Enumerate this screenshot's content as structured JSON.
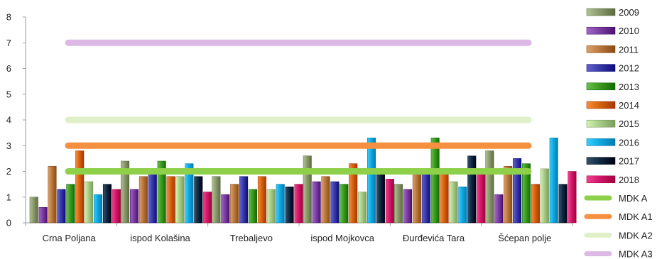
{
  "chart_data": {
    "type": "bar",
    "title": "",
    "xlabel": "",
    "ylabel": "",
    "ylim": [
      0,
      8
    ],
    "yticks": [
      "0",
      "1",
      "2",
      "3",
      "4",
      "5",
      "6",
      "7",
      "8"
    ],
    "grid": false,
    "legend_position": "right",
    "categories": [
      "Crna Poljana",
      "ispod Kolašina",
      "Trebaljevo",
      "ispod Mojkovca",
      "Đurđevića Tara",
      "Šćepan polje"
    ],
    "series": [
      {
        "name": "2009",
        "color": "#8a9a6c",
        "values": [
          1.0,
          2.4,
          1.8,
          2.6,
          1.5,
          2.8
        ]
      },
      {
        "name": "2010",
        "color": "#7a3fa0",
        "values": [
          0.6,
          1.3,
          1.1,
          1.6,
          1.3,
          1.1
        ]
      },
      {
        "name": "2011",
        "color": "#b87840",
        "values": [
          2.2,
          1.8,
          1.5,
          1.8,
          1.9,
          2.2
        ]
      },
      {
        "name": "2012",
        "color": "#3a3aa8",
        "values": [
          1.3,
          2.0,
          1.8,
          1.6,
          2.0,
          2.5
        ]
      },
      {
        "name": "2013",
        "color": "#3f9a22",
        "values": [
          1.5,
          2.4,
          1.3,
          1.5,
          3.3,
          2.3
        ]
      },
      {
        "name": "2014",
        "color": "#d46410",
        "values": [
          2.8,
          1.8,
          1.8,
          2.3,
          2.0,
          1.5
        ]
      },
      {
        "name": "2015",
        "color": "#a8cc88",
        "values": [
          1.6,
          1.8,
          1.3,
          1.2,
          1.6,
          2.1
        ]
      },
      {
        "name": "2016",
        "color": "#10a8e0",
        "values": [
          1.1,
          2.3,
          1.5,
          3.3,
          1.4,
          3.3
        ]
      },
      {
        "name": "2017",
        "color": "#0f2a44",
        "values": [
          1.5,
          1.8,
          1.4,
          1.9,
          2.6,
          1.5
        ]
      },
      {
        "name": "2018",
        "color": "#d0186a",
        "values": [
          1.3,
          1.2,
          1.5,
          1.7,
          1.9,
          2.0
        ]
      }
    ],
    "reference_lines": [
      {
        "name": "MDK A",
        "color": "#8fd04a",
        "value": 2
      },
      {
        "name": "MDK A1",
        "color": "#f49040",
        "value": 3
      },
      {
        "name": "MDK A2",
        "color": "#dff0c8",
        "value": 4
      },
      {
        "name": "MDK A3",
        "color": "#dcb8e4",
        "value": 7
      }
    ]
  }
}
